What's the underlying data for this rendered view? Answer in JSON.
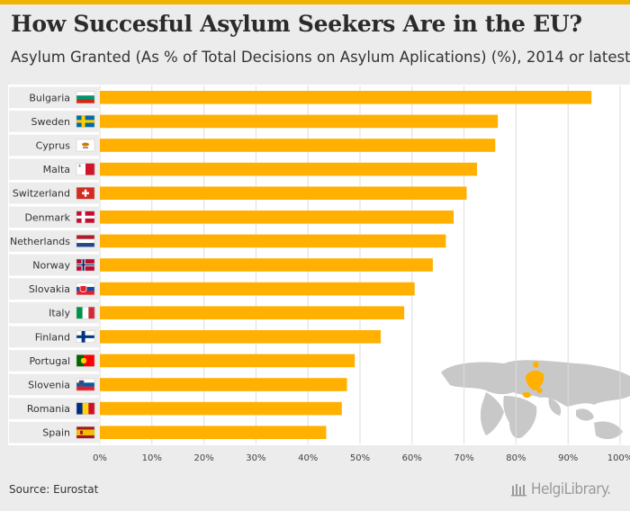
{
  "title": "How Succesful Asylum Seekers Are in the EU?",
  "subtitle": "Asylum Granted (As % of Total Decisions on Asylum Aplications) (%), 2014 or latest",
  "source": "Source: Eurostat",
  "brand": "HelgiLibrary.",
  "colors": {
    "bar": "#ffb000",
    "label_bg": "#ececec",
    "grid": "#dddddd",
    "background": "#ececec",
    "accent": "#f0b400"
  },
  "chart_data": {
    "type": "bar",
    "orientation": "horizontal",
    "title": "How Succesful Asylum Seekers Are in the EU?",
    "subtitle": "Asylum Granted (As % of Total Decisions on Asylum Aplications) (%), 2014 or latest",
    "categories": [
      "Bulgaria",
      "Sweden",
      "Cyprus",
      "Malta",
      "Switzerland",
      "Denmark",
      "Netherlands",
      "Norway",
      "Slovakia",
      "Italy",
      "Finland",
      "Portugal",
      "Slovenia",
      "Romania",
      "Spain"
    ],
    "values": [
      94.5,
      76.5,
      76,
      72.5,
      70.5,
      68,
      66.5,
      64,
      60.5,
      58.5,
      54,
      49,
      47.5,
      46.5,
      43.5
    ],
    "flags": [
      "bulgaria-flag",
      "sweden-flag",
      "cyprus-flag",
      "malta-flag",
      "switzerland-flag",
      "denmark-flag",
      "netherlands-flag",
      "norway-flag",
      "slovakia-flag",
      "italy-flag",
      "finland-flag",
      "portugal-flag",
      "slovenia-flag",
      "romania-flag",
      "spain-flag"
    ],
    "x_ticks": [
      "0%",
      "10%",
      "20%",
      "30%",
      "40%",
      "50%",
      "60%",
      "70%",
      "80%",
      "90%",
      "100%"
    ],
    "xlim": [
      0,
      100
    ],
    "xlabel": "",
    "ylabel": "",
    "grid": true
  }
}
